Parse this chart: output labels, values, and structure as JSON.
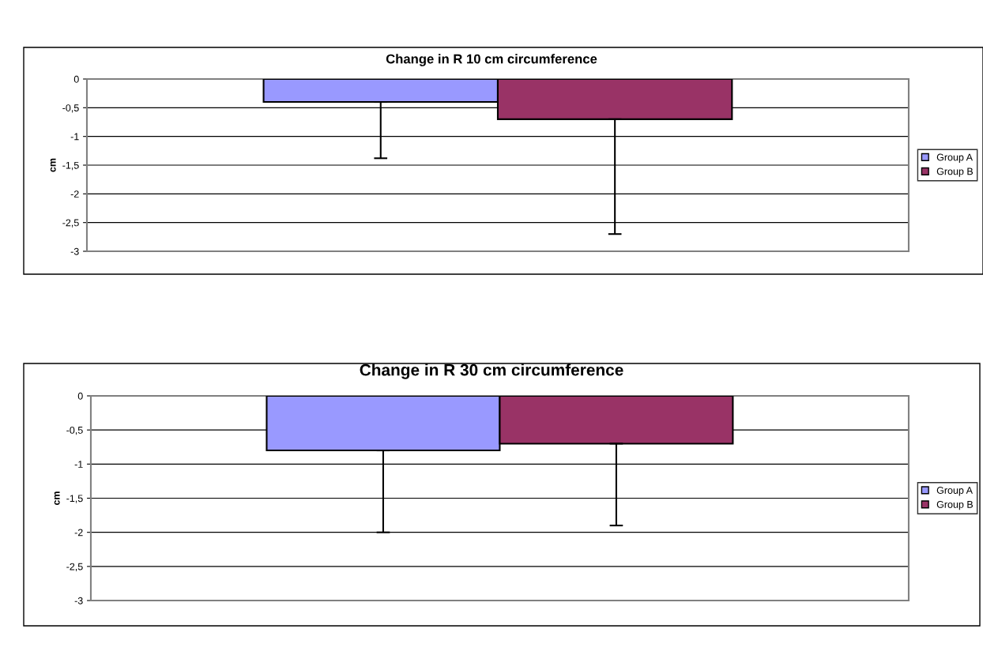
{
  "chart_data": [
    {
      "type": "bar",
      "title": "Change in R 10 cm circumference",
      "ylabel": "cm",
      "categories": [
        null
      ],
      "series": [
        {
          "name": "Group A",
          "color": "#9999ff",
          "values": [
            -0.4
          ],
          "errors": [
            [
              -1.38,
              -0.4
            ]
          ]
        },
        {
          "name": "Group B",
          "color": "#993366",
          "values": [
            -0.7
          ],
          "errors": [
            [
              -2.7,
              -0.7
            ]
          ]
        }
      ],
      "ylim": [
        -3,
        0
      ],
      "yticks": [
        0,
        {
          "value": -0.5,
          "label": "-0,5"
        },
        -1,
        {
          "value": -1.5,
          "label": "-1,5"
        },
        -2,
        {
          "value": -2.5,
          "label": "-2,5"
        },
        -3
      ],
      "grid": "y",
      "legend": "right"
    },
    {
      "type": "bar",
      "title": "Change in R 30 cm circumference",
      "ylabel": "cm",
      "categories": [
        null
      ],
      "series": [
        {
          "name": "Group A",
          "color": "#9999ff",
          "values": [
            -0.8
          ],
          "errors": [
            [
              -2.0,
              -0.8
            ]
          ]
        },
        {
          "name": "Group B",
          "color": "#993366",
          "values": [
            -0.7
          ],
          "errors": [
            [
              -1.9,
              -0.7
            ]
          ]
        }
      ],
      "ylim": [
        -3,
        0
      ],
      "yticks": [
        0,
        {
          "value": -0.5,
          "label": "-0,5"
        },
        -1,
        {
          "value": -1.5,
          "label": "-1,5"
        },
        -2,
        {
          "value": -2.5,
          "label": "-2,5"
        },
        -3
      ],
      "grid": "y",
      "legend": "right"
    }
  ]
}
